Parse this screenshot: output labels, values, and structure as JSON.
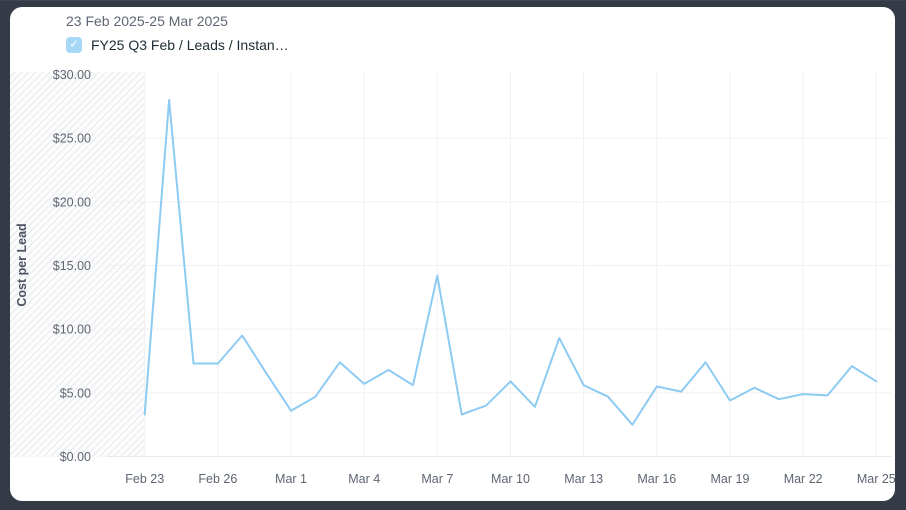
{
  "header": {
    "date_range": "23 Feb 2025-25 Mar 2025"
  },
  "legend": {
    "label": "FY25 Q3 Feb / Leads / Instan…",
    "checked": true,
    "check_glyph": "✓"
  },
  "colors": {
    "frame_dark": "#343a46",
    "card_bg": "#ffffff",
    "line_blue": "#8ecbf2",
    "checkbox_blue": "#a6d7f6",
    "grid": "#f0f1f4",
    "baseline": "#e7e9ed",
    "hatch_stripe": "#e9ebee",
    "hatch_bg": "#fcfcfd",
    "title_text": "#5f6673",
    "legend_text": "#1c2b33",
    "axis_text": "#5e6672",
    "y_title_text": "#4a5160"
  },
  "chart_data": {
    "type": "line",
    "title": "23 Feb 2025-25 Mar 2025",
    "series_name": "FY25 Q3 Feb / Leads / Instan…",
    "xlabel": "",
    "ylabel": "Cost per Lead",
    "ylim": [
      0,
      30
    ],
    "grid": true,
    "legend_position": "top-left",
    "hatched_region_before_first_point": true,
    "x": [
      "Feb 23",
      "Feb 24",
      "Feb 25",
      "Feb 26",
      "Feb 27",
      "Feb 28",
      "Mar 1",
      "Mar 2",
      "Mar 3",
      "Mar 4",
      "Mar 5",
      "Mar 6",
      "Mar 7",
      "Mar 8",
      "Mar 9",
      "Mar 10",
      "Mar 11",
      "Mar 12",
      "Mar 13",
      "Mar 14",
      "Mar 15",
      "Mar 16",
      "Mar 17",
      "Mar 18",
      "Mar 19",
      "Mar 20",
      "Mar 21",
      "Mar 22",
      "Mar 23",
      "Mar 24",
      "Mar 25"
    ],
    "values": [
      3.3,
      28.0,
      7.3,
      7.3,
      9.5,
      6.5,
      3.6,
      4.7,
      7.4,
      5.7,
      6.8,
      5.6,
      14.2,
      3.3,
      4.0,
      5.9,
      3.9,
      9.3,
      5.6,
      4.7,
      2.5,
      5.5,
      5.1,
      7.4,
      4.4,
      5.4,
      4.5,
      4.9,
      4.8,
      7.1,
      5.9
    ],
    "y_ticks": [
      0,
      5,
      10,
      15,
      20,
      25,
      30
    ],
    "y_tick_labels": [
      "$0.00",
      "$5.00",
      "$10.00",
      "$15.00",
      "$20.00",
      "$25.00",
      "$30.00"
    ],
    "x_tick_every": 3,
    "x_tick_labels": [
      "Feb 23",
      "Feb 26",
      "Mar 1",
      "Mar 4",
      "Mar 7",
      "Mar 10",
      "Mar 13",
      "Mar 16",
      "Mar 19",
      "Mar 22",
      "Mar 25"
    ]
  }
}
